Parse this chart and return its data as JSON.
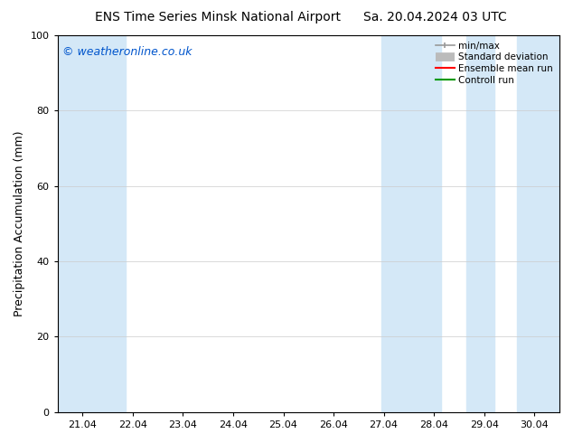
{
  "title_left": "ENS Time Series Minsk National Airport",
  "title_right": "Sa. 20.04.2024 03 UTC",
  "ylabel": "Precipitation Accumulation (mm)",
  "watermark": "© weatheronline.co.uk",
  "watermark_color": "#0055cc",
  "ylim": [
    0,
    100
  ],
  "yticks": [
    0,
    20,
    40,
    60,
    80,
    100
  ],
  "xtick_labels": [
    "21.04",
    "22.04",
    "23.04",
    "24.04",
    "25.04",
    "26.04",
    "27.04",
    "28.04",
    "29.04",
    "30.04"
  ],
  "xtick_positions": [
    21,
    22,
    23,
    24,
    25,
    26,
    27,
    28,
    29,
    30
  ],
  "xlim": [
    20.5,
    30.5
  ],
  "background_color": "#ffffff",
  "plot_bg_color": "#ffffff",
  "band_color": "#d4e8f7",
  "shaded_bands": [
    {
      "x_start": 20.5,
      "x_end": 21.85
    },
    {
      "x_start": 26.95,
      "x_end": 28.15
    },
    {
      "x_start": 28.65,
      "x_end": 29.2
    },
    {
      "x_start": 29.65,
      "x_end": 30.5
    }
  ],
  "legend_labels": [
    "min/max",
    "Standard deviation",
    "Ensemble mean run",
    "Controll run"
  ],
  "legend_colors_line": [
    "#999999",
    "#bbbbbb",
    "#ff0000",
    "#009900"
  ],
  "title_fontsize": 10,
  "tick_fontsize": 8,
  "ylabel_fontsize": 9,
  "watermark_fontsize": 9
}
